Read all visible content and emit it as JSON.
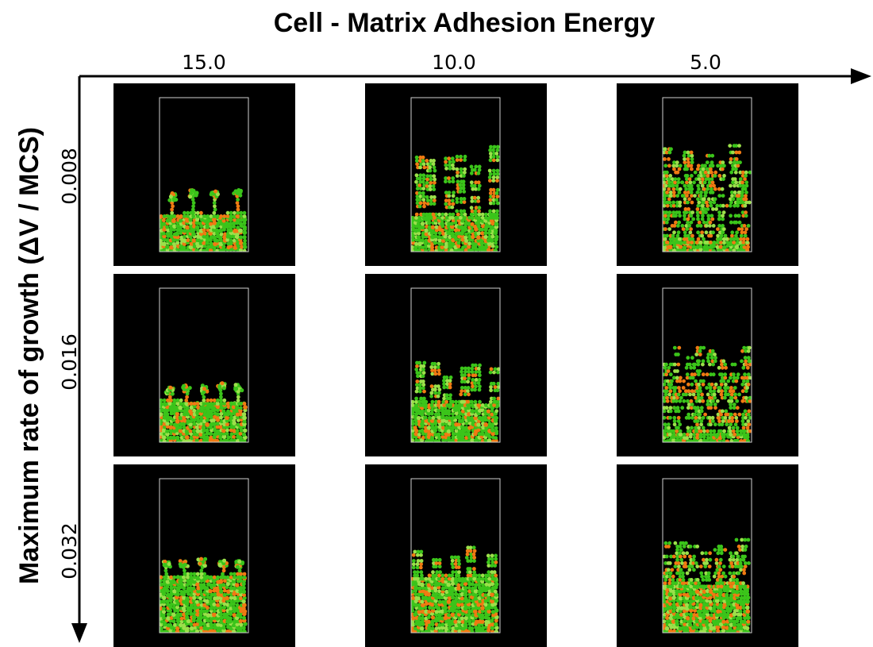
{
  "figure": {
    "column_axis_title": "Cell - Matrix Adhesion Energy",
    "row_axis_title": "Maximum rate of growth (ΔV / MCS)",
    "column_values": [
      "15.0",
      "10.0",
      "5.0"
    ],
    "row_values": [
      "0.008",
      "0.016",
      "0.032"
    ]
  },
  "colors": {
    "panel_background": "#000000",
    "domain_outline": "#cfcfcf",
    "cell_primary": "#3bc41a",
    "cell_secondary": "#f07a12",
    "cell_highlight": "#9be04a",
    "axis": "#000000"
  },
  "panels": [
    {
      "row": "0.008",
      "column": "15.0",
      "pattern": "fingers",
      "level": 0.23,
      "finger_count": 4,
      "finger_height": 0.18,
      "orange_fraction": 0.2
    },
    {
      "row": "0.008",
      "column": "10.0",
      "pattern": "detached-clusters",
      "level": 0.22,
      "finger_count": 6,
      "finger_height": 0.45,
      "orange_fraction": 0.22
    },
    {
      "row": "0.008",
      "column": "5.0",
      "pattern": "dispersed-columns",
      "level": 0.06,
      "finger_count": 8,
      "finger_height": 0.66,
      "orange_fraction": 0.25
    },
    {
      "row": "0.016",
      "column": "15.0",
      "pattern": "fingers",
      "level": 0.25,
      "finger_count": 5,
      "finger_height": 0.12,
      "orange_fraction": 0.22
    },
    {
      "row": "0.016",
      "column": "10.0",
      "pattern": "detached-clusters",
      "level": 0.24,
      "finger_count": 6,
      "finger_height": 0.27,
      "orange_fraction": 0.22
    },
    {
      "row": "0.016",
      "column": "5.0",
      "pattern": "dispersed-columns",
      "level": 0.05,
      "finger_count": 8,
      "finger_height": 0.6,
      "orange_fraction": 0.25
    },
    {
      "row": "0.032",
      "column": "15.0",
      "pattern": "fingers",
      "level": 0.36,
      "finger_count": 5,
      "finger_height": 0.1,
      "orange_fraction": 0.2
    },
    {
      "row": "0.032",
      "column": "10.0",
      "pattern": "detached-clusters",
      "level": 0.35,
      "finger_count": 5,
      "finger_height": 0.18,
      "orange_fraction": 0.2
    },
    {
      "row": "0.032",
      "column": "5.0",
      "pattern": "dispersed-columns",
      "level": 0.3,
      "finger_count": 7,
      "finger_height": 0.33,
      "orange_fraction": 0.25
    }
  ]
}
